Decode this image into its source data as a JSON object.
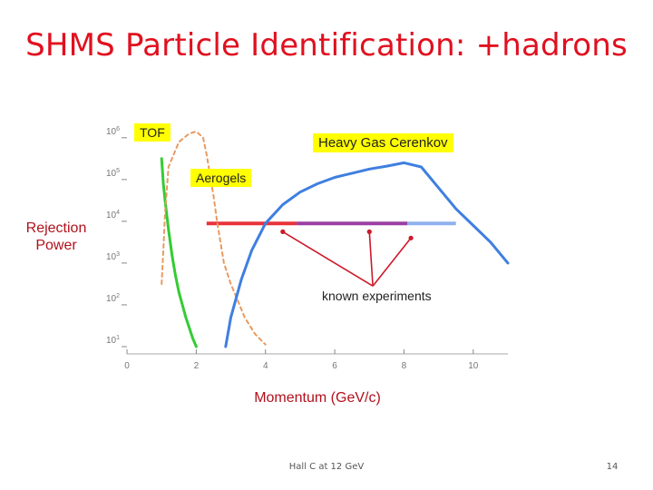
{
  "slide": {
    "title": "SHMS Particle Identification: +hadrons",
    "footer": "Hall C at 12 GeV",
    "page_number": "14"
  },
  "chart_data": {
    "type": "line",
    "title": "",
    "xlabel": "Momentum (GeV/c)",
    "ylabel": "Rejection Power",
    "xlim": [
      0,
      11
    ],
    "ylim": [
      1,
      6.3
    ],
    "y_scale": "log10",
    "x_ticks": [
      "0",
      "2",
      "4",
      "6",
      "8",
      "10"
    ],
    "y_ticks": [
      {
        "base": "10",
        "exp": "1",
        "v": 1
      },
      {
        "base": "10",
        "exp": "2",
        "v": 2
      },
      {
        "base": "10",
        "exp": "3",
        "v": 3
      },
      {
        "base": "10",
        "exp": "4",
        "v": 4
      },
      {
        "base": "10",
        "exp": "5",
        "v": 5
      },
      {
        "base": "10",
        "exp": "6",
        "v": 6
      }
    ],
    "grid": false,
    "series": [
      {
        "key": "tof",
        "color": "#33cc33",
        "dash": "",
        "x": [
          1.0,
          1.05,
          1.1,
          1.2,
          1.3,
          1.4,
          1.5,
          1.6,
          1.7,
          1.8,
          1.9,
          2.0
        ],
        "y": [
          5.5,
          4.9,
          4.5,
          3.8,
          3.2,
          2.7,
          2.3,
          2.0,
          1.7,
          1.45,
          1.2,
          1.0
        ]
      },
      {
        "key": "tof-alt",
        "color": "#e89a60",
        "dash": "4,4",
        "x": [
          1.0,
          1.05,
          1.1,
          1.2,
          1.5,
          1.8,
          2.0,
          2.2,
          2.3,
          2.5,
          2.6,
          2.8,
          3.0,
          3.2,
          3.4,
          3.7,
          4.0
        ],
        "y": [
          2.5,
          3.3,
          4.2,
          5.3,
          5.9,
          6.1,
          6.15,
          6.0,
          5.6,
          4.6,
          4.0,
          3.0,
          2.5,
          2.1,
          1.7,
          1.3,
          1.05
        ]
      },
      {
        "key": "hgc",
        "color": "#3f7fe0",
        "dash": "",
        "x": [
          2.85,
          3.0,
          3.3,
          3.6,
          4.0,
          4.5,
          5.0,
          5.5,
          6.0,
          6.5,
          7.0,
          7.5,
          8.0,
          8.5,
          9.0,
          9.5,
          10.0,
          10.5,
          11.0
        ],
        "y": [
          1.0,
          1.7,
          2.6,
          3.3,
          3.95,
          4.4,
          4.7,
          4.9,
          5.05,
          5.15,
          5.25,
          5.32,
          5.4,
          5.3,
          4.8,
          4.3,
          3.9,
          3.5,
          3.0
        ]
      }
    ],
    "bands": [
      {
        "key": "aerogel-1",
        "color": "#e8333a",
        "x0": 2.3,
        "x1": 4.9,
        "y": 3.95
      },
      {
        "key": "aerogel-2",
        "color": "#9b3fa3",
        "x0": 4.9,
        "x1": 8.1,
        "y": 3.95
      },
      {
        "key": "aerogel-3",
        "color": "#8fb2ee",
        "x0": 8.1,
        "x1": 9.5,
        "y": 3.95
      }
    ],
    "annotations": {
      "tof": "TOF",
      "heavy_gas": "Heavy Gas Cerenkov",
      "aerogels": "Aerogels",
      "known_experiments": "known experiments"
    },
    "known_experiment_points": [
      {
        "x": 4.5,
        "y": 3.75
      },
      {
        "x": 7.0,
        "y": 3.75
      },
      {
        "x": 8.2,
        "y": 3.6
      }
    ],
    "arrow_target": {
      "x": 7.1,
      "y": 2.45
    }
  }
}
